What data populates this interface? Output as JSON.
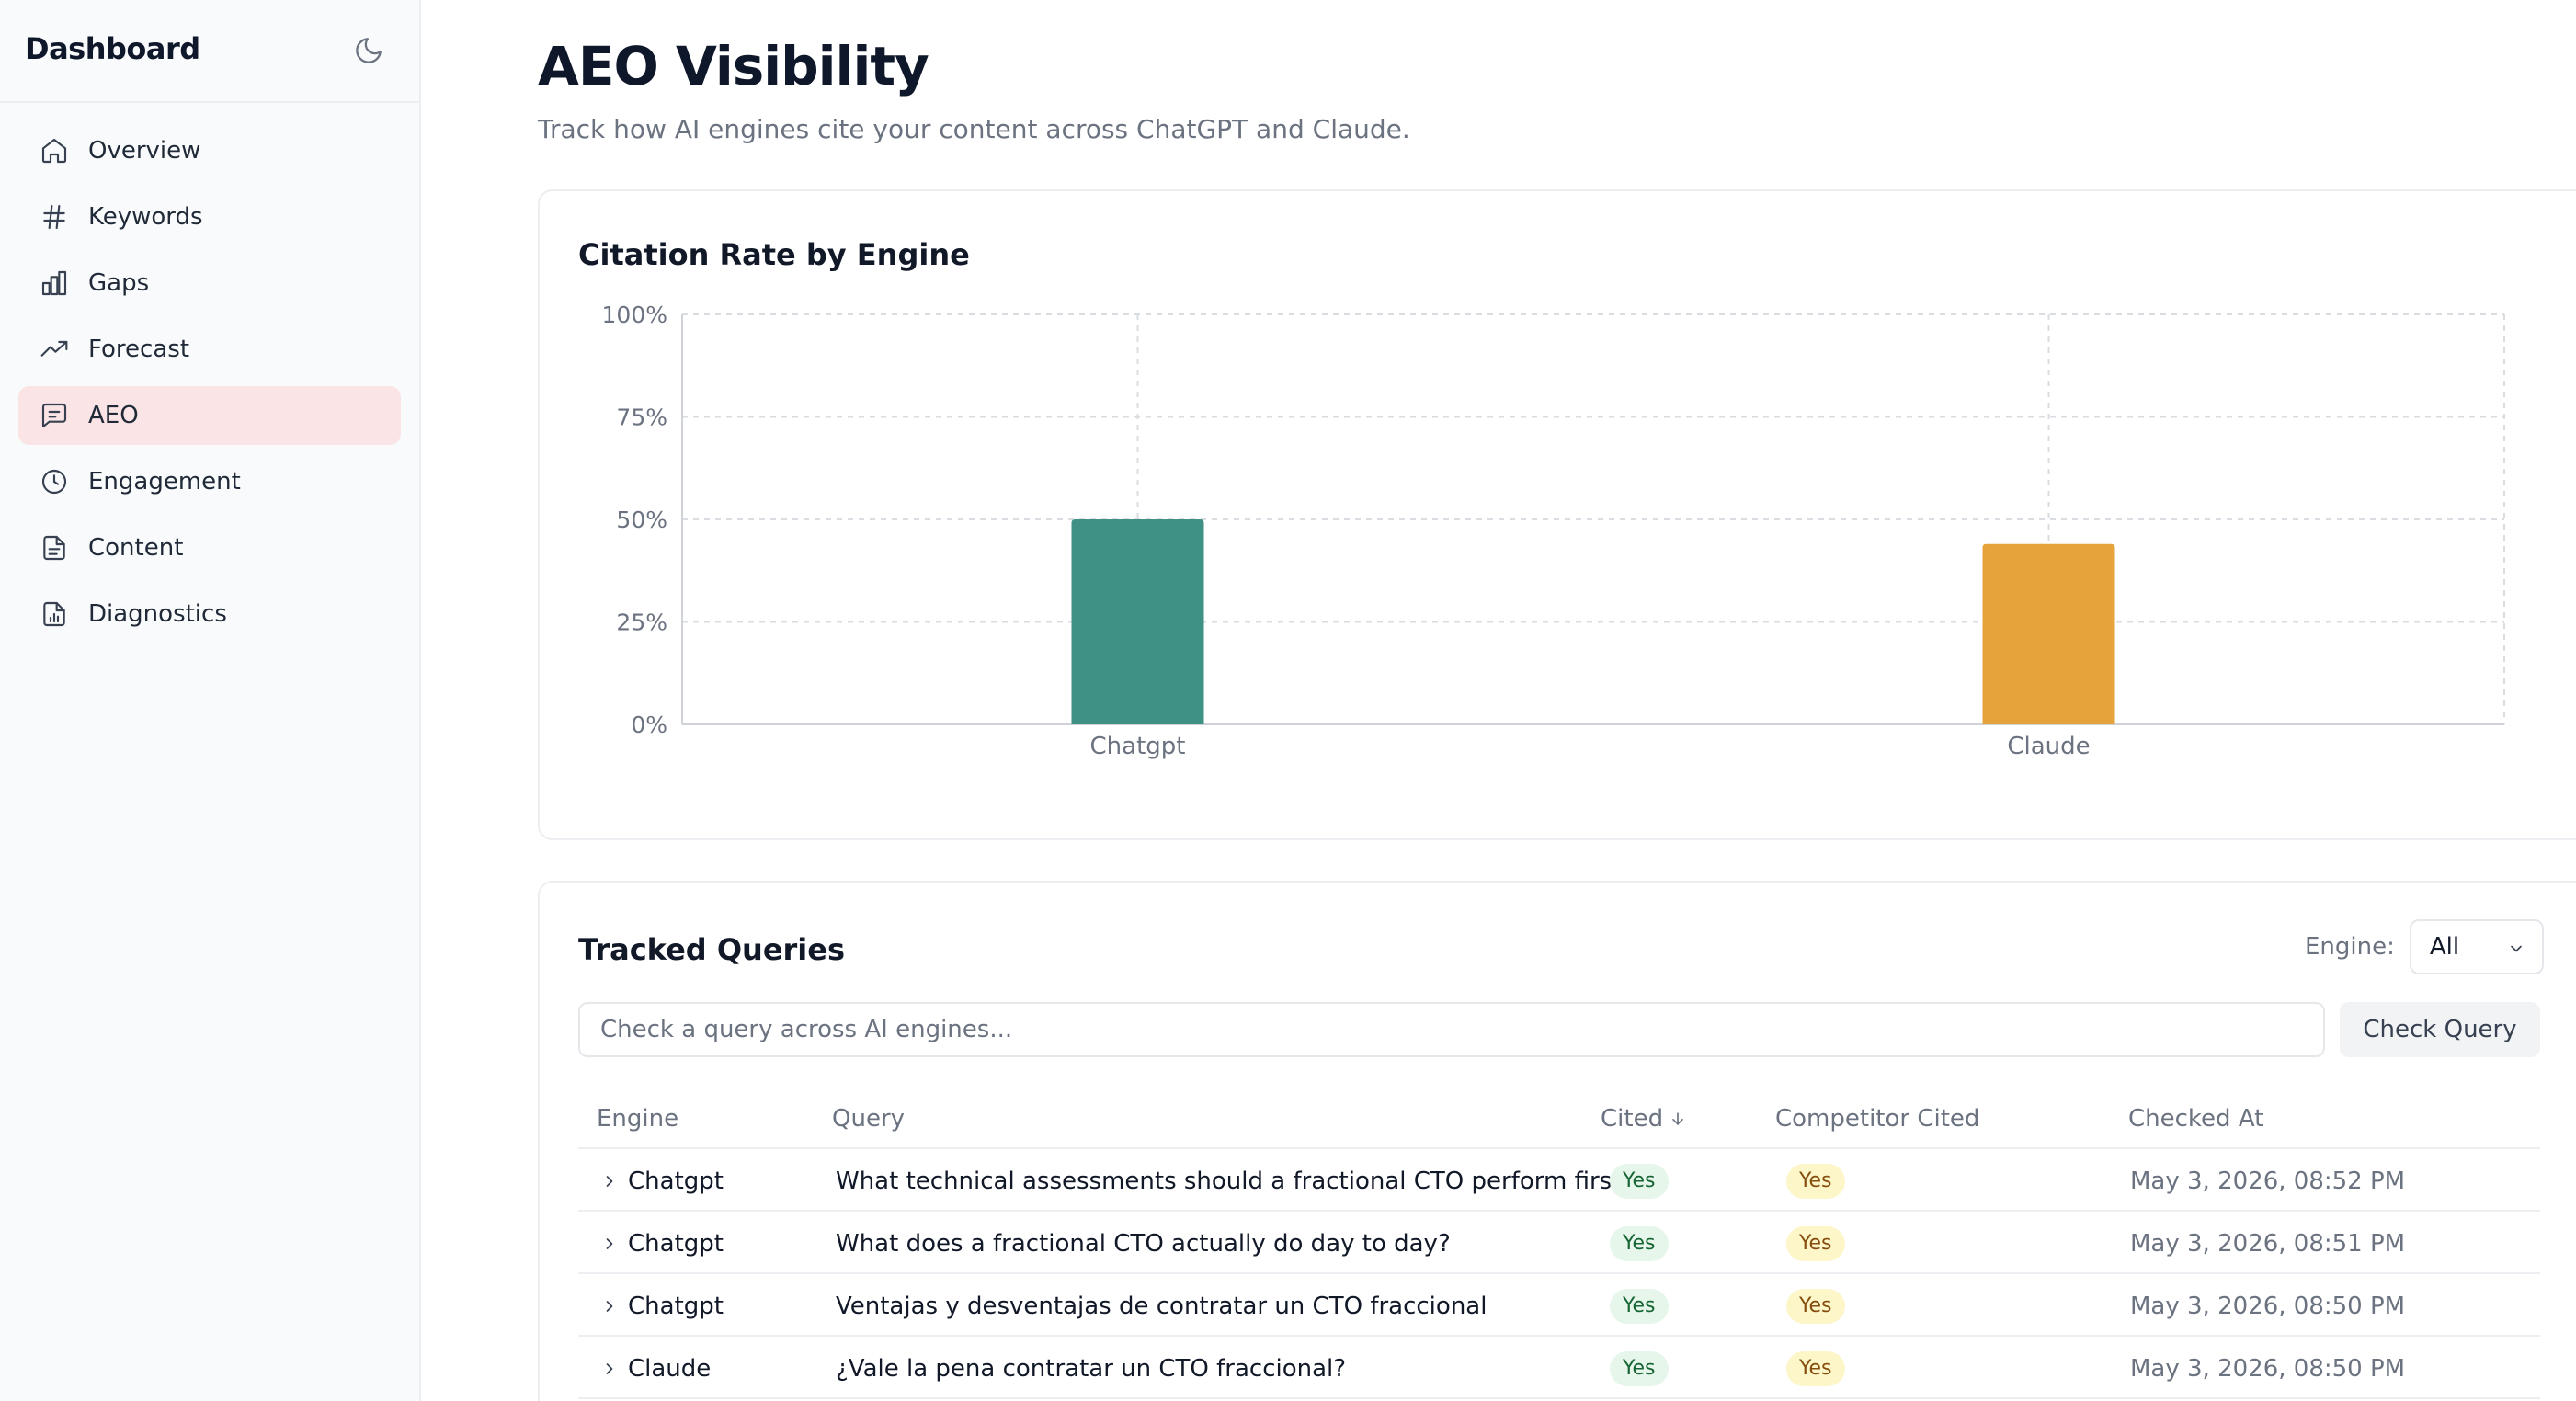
{
  "sidebar": {
    "title": "Dashboard",
    "theme_icon": "moon-icon",
    "items": [
      {
        "label": "Overview",
        "icon": "home-icon",
        "active": false
      },
      {
        "label": "Keywords",
        "icon": "hash-icon",
        "active": false
      },
      {
        "label": "Gaps",
        "icon": "bar-chart-icon",
        "active": false
      },
      {
        "label": "Forecast",
        "icon": "trending-up-icon",
        "active": false
      },
      {
        "label": "AEO",
        "icon": "message-square-icon",
        "active": true
      },
      {
        "label": "Engagement",
        "icon": "clock-icon",
        "active": false
      },
      {
        "label": "Content",
        "icon": "file-text-icon",
        "active": false
      },
      {
        "label": "Diagnostics",
        "icon": "file-chart-icon",
        "active": false
      }
    ]
  },
  "header": {
    "title": "AEO Visibility",
    "subtitle": "Track how AI engines cite your content across ChatGPT and Claude."
  },
  "citation_card": {
    "title": "Citation Rate by Engine"
  },
  "chart_data": {
    "type": "bar",
    "title": "Citation Rate by Engine",
    "categories": [
      "Chatgpt",
      "Claude"
    ],
    "values": [
      50,
      44
    ],
    "colors": [
      "#409185",
      "#e6a33c"
    ],
    "ylim": [
      0,
      100
    ],
    "yticks": [
      "0%",
      "25%",
      "50%",
      "75%",
      "100%"
    ],
    "ytick_values": [
      0,
      25,
      50,
      75,
      100
    ],
    "grid": true
  },
  "tracked": {
    "title": "Tracked Queries",
    "filter_label": "Engine:",
    "filter_value": "All",
    "search_placeholder": "Check a query across AI engines...",
    "check_button": "Check Query",
    "columns": {
      "engine": "Engine",
      "query": "Query",
      "cited": "Cited",
      "cited_sort_icon": "arrow-down-icon",
      "competitor": "Competitor Cited",
      "checked_at": "Checked At"
    },
    "rows": [
      {
        "engine": "Chatgpt",
        "query": "What technical assessments should a fractional CTO perform first?",
        "cited": "Yes",
        "competitor": "Yes",
        "checked_at": "May 3, 2026, 08:52 PM"
      },
      {
        "engine": "Chatgpt",
        "query": "What does a fractional CTO actually do day to day?",
        "cited": "Yes",
        "competitor": "Yes",
        "checked_at": "May 3, 2026, 08:51 PM"
      },
      {
        "engine": "Chatgpt",
        "query": "Ventajas y desventajas de contratar un CTO fraccional",
        "cited": "Yes",
        "competitor": "Yes",
        "checked_at": "May 3, 2026, 08:50 PM"
      },
      {
        "engine": "Claude",
        "query": "¿Vale la pena contratar un CTO fraccional?",
        "cited": "Yes",
        "competitor": "Yes",
        "checked_at": "May 3, 2026, 08:50 PM"
      }
    ]
  }
}
